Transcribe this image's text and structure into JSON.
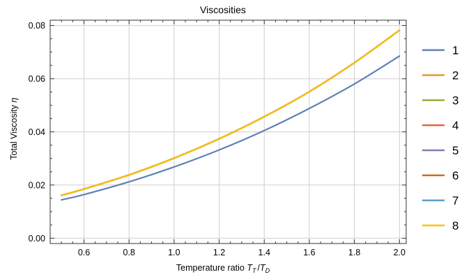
{
  "chart_data": {
    "type": "line",
    "title": "Viscosities",
    "xlabel": {
      "prefix": "Temperature ratio ",
      "num_var": "T",
      "num_sub": "T",
      "slash": "/",
      "den_var": "T",
      "den_sub": "D"
    },
    "ylabel": {
      "text": "Total Viscosity ",
      "symbol": "η"
    },
    "xlim": [
      0.45,
      2.03
    ],
    "ylim": [
      -0.002,
      0.082
    ],
    "x_ticks": [
      0.6,
      0.8,
      1.0,
      1.2,
      1.4,
      1.6,
      1.8,
      2.0
    ],
    "x_tick_labels": [
      "0.6",
      "0.8",
      "1.0",
      "1.2",
      "1.4",
      "1.6",
      "1.8",
      "2.0"
    ],
    "y_ticks": [
      0.0,
      0.02,
      0.04,
      0.06,
      0.08
    ],
    "y_tick_labels": [
      "0.00",
      "0.02",
      "0.04",
      "0.06",
      "0.08"
    ],
    "grid": true,
    "legend_position": "right",
    "series": [
      {
        "name": "1",
        "color": "#5E81B5",
        "x": [
          0.5,
          0.6,
          0.8,
          1.0,
          1.2,
          1.4,
          1.6,
          1.8,
          2.0
        ],
        "y": [
          0.0144,
          0.0164,
          0.0212,
          0.0268,
          0.0332,
          0.0405,
          0.0488,
          0.058,
          0.0685
        ]
      },
      {
        "name": "2",
        "color": "#E19C24",
        "x": [
          0.5,
          0.6,
          0.8,
          1.0,
          1.2,
          1.4,
          1.6,
          1.8,
          2.0
        ],
        "y": [
          0.0161,
          0.0185,
          0.0238,
          0.0301,
          0.0374,
          0.0457,
          0.0551,
          0.066,
          0.0782
        ]
      },
      {
        "name": "3",
        "color": "#8FB032",
        "x": [
          0.5,
          0.6,
          0.8,
          1.0,
          1.2,
          1.4,
          1.6,
          1.8,
          2.0
        ],
        "y": [
          0.0161,
          0.0185,
          0.0238,
          0.0301,
          0.0374,
          0.0457,
          0.0551,
          0.066,
          0.0782
        ]
      },
      {
        "name": "4",
        "color": "#EB6235",
        "x": [
          0.5,
          0.6,
          0.8,
          1.0,
          1.2,
          1.4,
          1.6,
          1.8,
          2.0
        ],
        "y": [
          0.0161,
          0.0185,
          0.0238,
          0.0301,
          0.0374,
          0.0457,
          0.0551,
          0.066,
          0.0782
        ]
      },
      {
        "name": "5",
        "color": "#8778B3",
        "x": [
          0.5,
          0.6,
          0.8,
          1.0,
          1.2,
          1.4,
          1.6,
          1.8,
          2.0
        ],
        "y": [
          0.0161,
          0.0185,
          0.0238,
          0.0301,
          0.0374,
          0.0457,
          0.0551,
          0.066,
          0.0782
        ]
      },
      {
        "name": "6",
        "color": "#C56E1A",
        "x": [
          0.5,
          0.6,
          0.8,
          1.0,
          1.2,
          1.4,
          1.6,
          1.8,
          2.0
        ],
        "y": [
          0.0161,
          0.0185,
          0.0238,
          0.0301,
          0.0374,
          0.0457,
          0.0551,
          0.066,
          0.0782
        ]
      },
      {
        "name": "7",
        "color": "#5D9EC7",
        "x": [
          0.5,
          0.6,
          0.8,
          1.0,
          1.2,
          1.4,
          1.6,
          1.8,
          2.0
        ],
        "y": [
          0.0161,
          0.0185,
          0.0238,
          0.0301,
          0.0374,
          0.0457,
          0.0551,
          0.066,
          0.0782
        ]
      },
      {
        "name": "8",
        "color": "#FFBF00",
        "x": [
          0.5,
          0.6,
          0.8,
          1.0,
          1.2,
          1.4,
          1.6,
          1.8,
          2.0
        ],
        "y": [
          0.0161,
          0.0185,
          0.0238,
          0.0301,
          0.0374,
          0.0457,
          0.0551,
          0.066,
          0.0782
        ]
      }
    ]
  }
}
